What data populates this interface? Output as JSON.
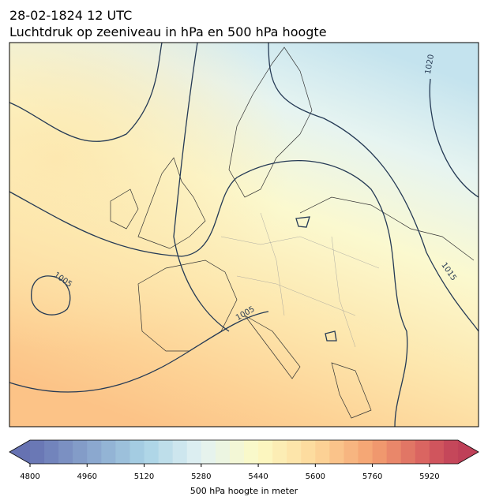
{
  "header": {
    "date": "28-02-1824 12 UTC",
    "title": "Luchtdruk op zeeniveau in hPa en 500 hPa hoogte"
  },
  "map": {
    "contour_labels": [
      1005,
      1005,
      1015,
      1020
    ]
  },
  "colorbar": {
    "label": "500 hPa hoogte in meter",
    "range": [
      4800,
      6000
    ],
    "step": 40,
    "ticks": [
      4800,
      4960,
      5120,
      5280,
      5440,
      5600,
      5760,
      5920
    ],
    "stops": [
      {
        "value": 4800,
        "color": "#6672b2"
      },
      {
        "value": 5120,
        "color": "#a8d2e5"
      },
      {
        "value": 5280,
        "color": "#e3f2f3"
      },
      {
        "value": 5440,
        "color": "#fcfac4"
      },
      {
        "value": 5600,
        "color": "#fdd89a"
      },
      {
        "value": 5760,
        "color": "#f4a070"
      },
      {
        "value": 5920,
        "color": "#d65c5f"
      },
      {
        "value": 6000,
        "color": "#bf4058"
      }
    ]
  }
}
